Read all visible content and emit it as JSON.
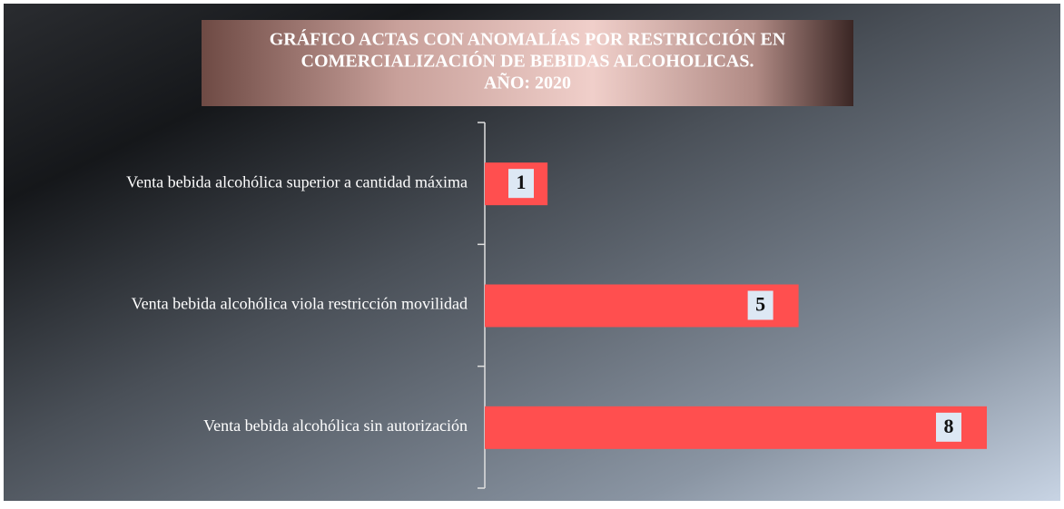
{
  "chart_data": {
    "type": "hbar",
    "title": [
      "GRÁFICO ACTAS CON ANOMALÍAS POR RESTRICCIÓN EN",
      "COMERCIALIZACIÓN DE BEBIDAS ALCOHOLICAS.",
      "AÑO: 2020"
    ],
    "categories": [
      "Venta bebida alcohólica superior a cantidad máxima",
      "Venta bebida alcohólica viola restricción movilidad",
      "Venta bebida alcohólica sin autorización"
    ],
    "values": [
      1,
      5,
      8
    ],
    "color": "#ff4f4f",
    "xlim": [
      0,
      8
    ]
  }
}
